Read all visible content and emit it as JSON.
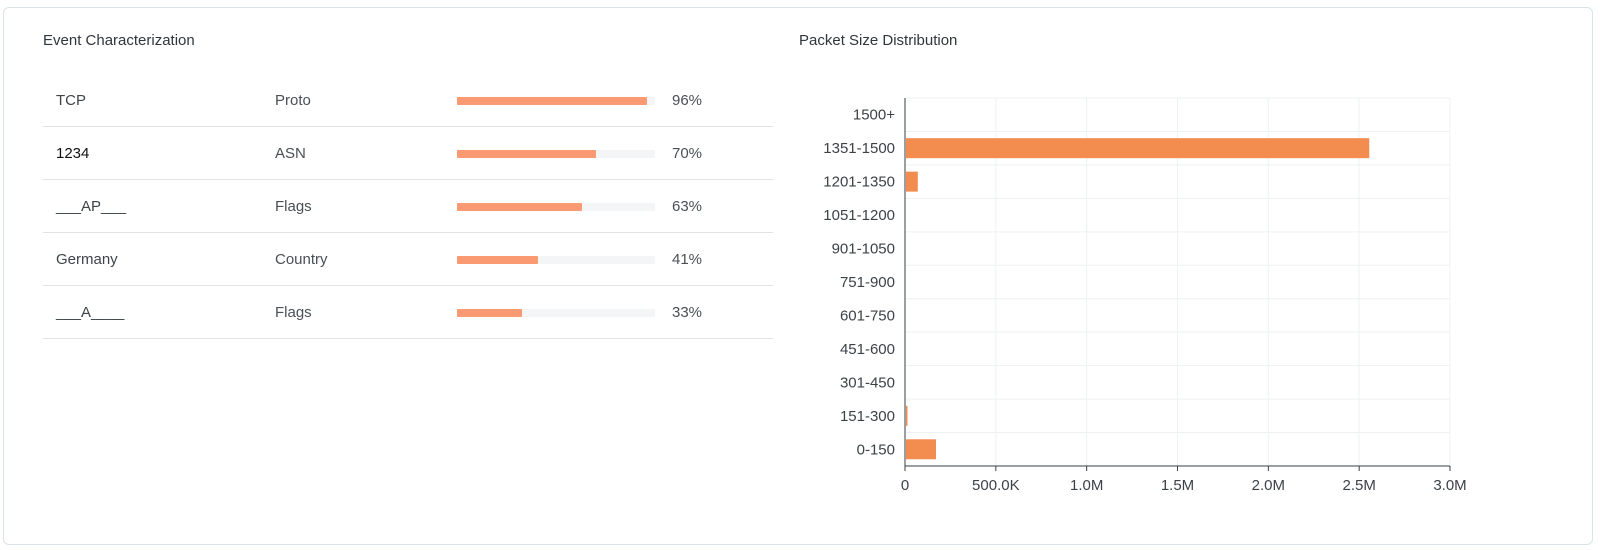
{
  "event_characterization": {
    "title": "Event Characterization",
    "rows": [
      {
        "value": "TCP",
        "field": "Proto",
        "percent": 96,
        "percent_label": "96%"
      },
      {
        "value": "1234",
        "field": "ASN",
        "percent": 70,
        "percent_label": "70%"
      },
      {
        "value": "___AP___",
        "field": "Flags",
        "percent": 63,
        "percent_label": "63%"
      },
      {
        "value": "Germany",
        "field": "Country",
        "percent": 41,
        "percent_label": "41%"
      },
      {
        "value": "___A____",
        "field": "Flags",
        "percent": 33,
        "percent_label": "33%"
      }
    ],
    "bar_color": "#f99a72"
  },
  "chart_data": {
    "type": "bar",
    "orientation": "horizontal",
    "title": "Packet Size Distribution",
    "categories": [
      "1500+",
      "1351-1500",
      "1201-1350",
      "1051-1200",
      "901-1050",
      "751-900",
      "601-750",
      "451-600",
      "301-450",
      "151-300",
      "0-150"
    ],
    "values": [
      0,
      2550000,
      65000,
      0,
      0,
      0,
      0,
      0,
      0,
      5000,
      165000
    ],
    "xlim": [
      0,
      3000000
    ],
    "xticks": [
      0,
      500000,
      1000000,
      1500000,
      2000000,
      2500000,
      3000000
    ],
    "xtick_labels": [
      "0",
      "500.0K",
      "1.0M",
      "1.5M",
      "2.0M",
      "2.5M",
      "3.0M"
    ],
    "xlabel": "",
    "ylabel": "",
    "grid": true,
    "bar_color": "#f28c4f"
  }
}
